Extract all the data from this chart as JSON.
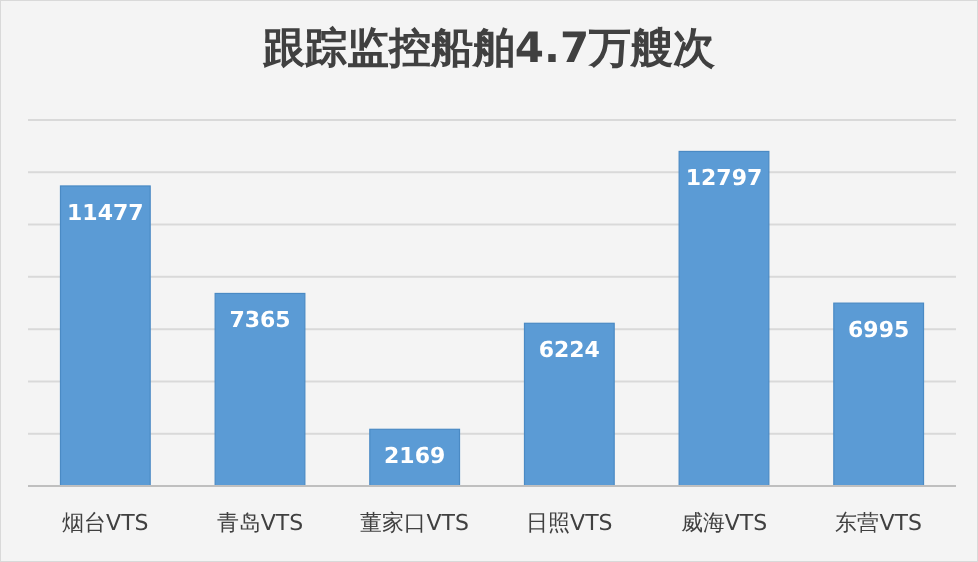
{
  "chart_data": {
    "type": "bar",
    "title": "跟踪监控船舶4.7万艘次",
    "categories": [
      "烟台VTS",
      "青岛VTS",
      "董家口VTS",
      "日照VTS",
      "威海VTS",
      "东营VTS"
    ],
    "values": [
      11477,
      7365,
      2169,
      6224,
      12797,
      6995
    ],
    "color": "#5b9bd5",
    "ylim": [
      0,
      14000
    ],
    "yticks": [
      {
        "value": 0,
        "label": null
      },
      {
        "value": 2000,
        "label": null
      },
      {
        "value": 4000,
        "label": null
      },
      {
        "value": 6000,
        "label": null
      },
      {
        "value": 8000,
        "label": null
      },
      {
        "value": 10000,
        "label": null
      },
      {
        "value": 12000,
        "label": null
      },
      {
        "value": 14000,
        "label": null
      }
    ],
    "grid": "y",
    "data_labels": true,
    "tick_labels": "x"
  }
}
